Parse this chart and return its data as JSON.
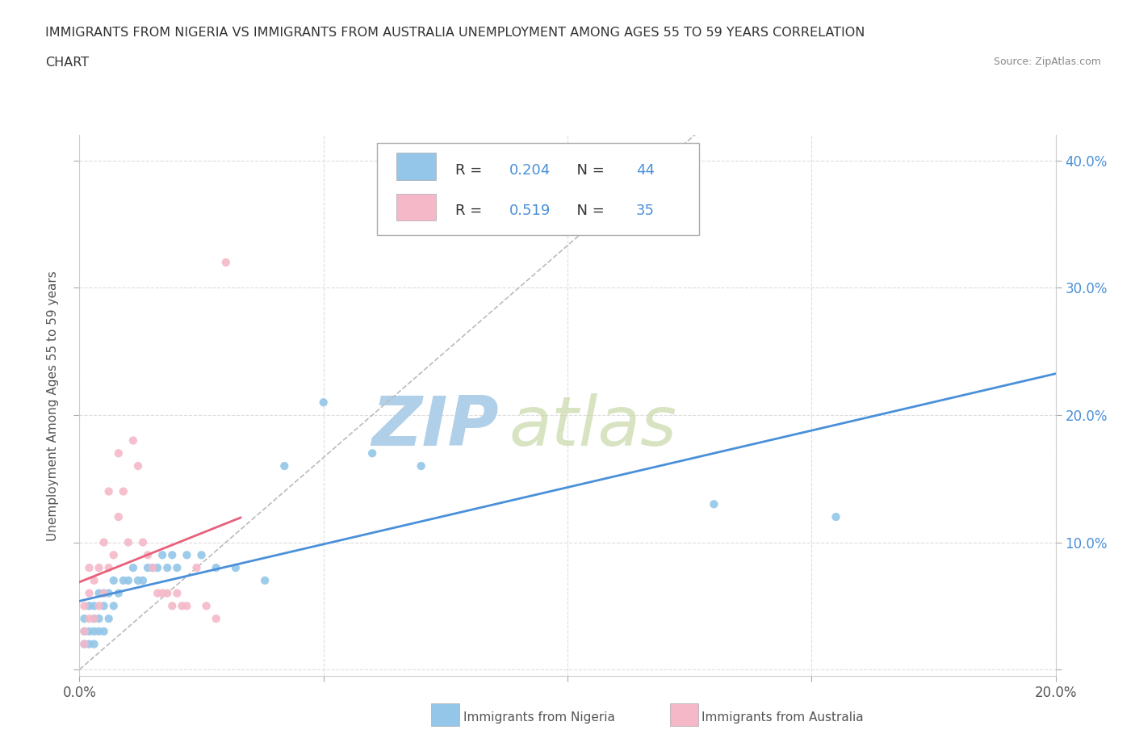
{
  "title_line1": "IMMIGRANTS FROM NIGERIA VS IMMIGRANTS FROM AUSTRALIA UNEMPLOYMENT AMONG AGES 55 TO 59 YEARS CORRELATION",
  "title_line2": "CHART",
  "source": "Source: ZipAtlas.com",
  "ylabel": "Unemployment Among Ages 55 to 59 years",
  "xlim": [
    0.0,
    0.2
  ],
  "ylim": [
    -0.005,
    0.42
  ],
  "xticks": [
    0.0,
    0.05,
    0.1,
    0.15,
    0.2
  ],
  "yticks": [
    0.0,
    0.1,
    0.2,
    0.3,
    0.4
  ],
  "xtick_labels_left": [
    "0.0%",
    "",
    "",
    "",
    "20.0%"
  ],
  "ytick_labels_left": [
    "",
    "",
    "",
    "",
    ""
  ],
  "ytick_labels_right": [
    "",
    "10.0%",
    "20.0%",
    "30.0%",
    "40.0%"
  ],
  "nigeria_color": "#93c6e8",
  "australia_color": "#f4b8c8",
  "nigeria_line_color": "#4a90d9",
  "australia_line_color": "#e8607a",
  "R_nigeria": 0.204,
  "N_nigeria": 44,
  "R_australia": 0.519,
  "N_australia": 35,
  "watermark_zip": "ZIP",
  "watermark_atlas": "atlas",
  "watermark_color": "#c8dff0",
  "nigeria_x": [
    0.001,
    0.001,
    0.001,
    0.002,
    0.002,
    0.002,
    0.003,
    0.003,
    0.003,
    0.003,
    0.004,
    0.004,
    0.004,
    0.005,
    0.005,
    0.005,
    0.006,
    0.006,
    0.007,
    0.007,
    0.008,
    0.009,
    0.01,
    0.011,
    0.012,
    0.013,
    0.014,
    0.015,
    0.016,
    0.017,
    0.018,
    0.019,
    0.02,
    0.022,
    0.025,
    0.028,
    0.032,
    0.038,
    0.042,
    0.05,
    0.06,
    0.07,
    0.13,
    0.155
  ],
  "nigeria_y": [
    0.02,
    0.03,
    0.04,
    0.02,
    0.03,
    0.05,
    0.02,
    0.03,
    0.04,
    0.05,
    0.03,
    0.04,
    0.06,
    0.03,
    0.05,
    0.06,
    0.04,
    0.06,
    0.05,
    0.07,
    0.06,
    0.07,
    0.07,
    0.08,
    0.07,
    0.07,
    0.08,
    0.08,
    0.08,
    0.09,
    0.08,
    0.09,
    0.08,
    0.09,
    0.09,
    0.08,
    0.08,
    0.07,
    0.16,
    0.21,
    0.17,
    0.16,
    0.13,
    0.12
  ],
  "australia_x": [
    0.001,
    0.001,
    0.001,
    0.002,
    0.002,
    0.002,
    0.003,
    0.003,
    0.004,
    0.004,
    0.005,
    0.005,
    0.006,
    0.006,
    0.007,
    0.008,
    0.008,
    0.009,
    0.01,
    0.011,
    0.012,
    0.013,
    0.014,
    0.015,
    0.016,
    0.017,
    0.018,
    0.019,
    0.02,
    0.021,
    0.022,
    0.024,
    0.026,
    0.028,
    0.03
  ],
  "australia_y": [
    0.02,
    0.03,
    0.05,
    0.04,
    0.06,
    0.08,
    0.04,
    0.07,
    0.05,
    0.08,
    0.06,
    0.1,
    0.08,
    0.14,
    0.09,
    0.12,
    0.17,
    0.14,
    0.1,
    0.18,
    0.16,
    0.1,
    0.09,
    0.08,
    0.06,
    0.06,
    0.06,
    0.05,
    0.06,
    0.05,
    0.05,
    0.08,
    0.05,
    0.04,
    0.32
  ]
}
